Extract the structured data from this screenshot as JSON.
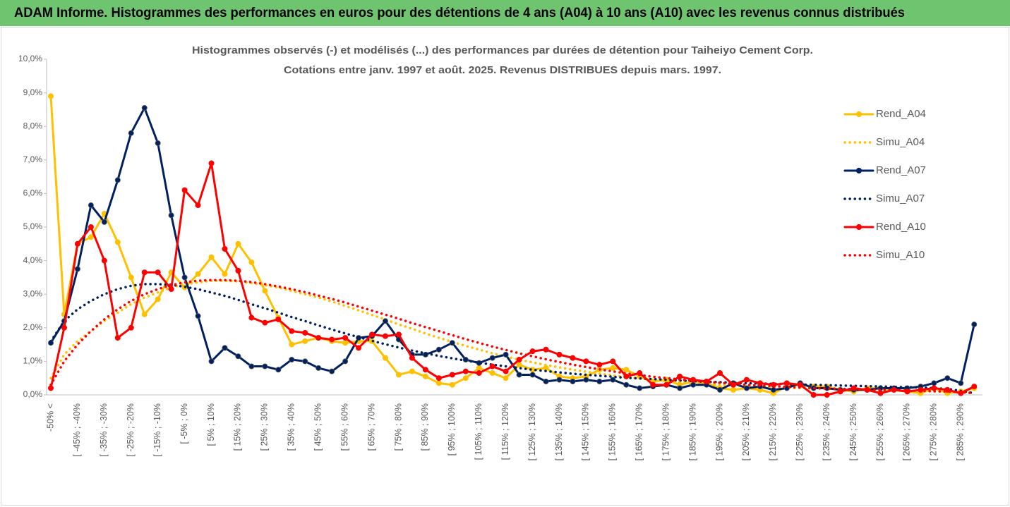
{
  "header": {
    "title": "ADAM Informe. Histogrammes des performances en euros pour des détentions de 4 ans (A04) à 10 ans (A10) avec les revenus connus distribués"
  },
  "chart_data": {
    "type": "line",
    "title": "Histogrammes observés (-) et modélisés (...) des performances par durées de détention pour Taiheiyo Cement Corp.",
    "subtitle": "Cotations entre janv. 1997 et août. 2025. Revenus DISTRIBUES depuis mars. 1997.",
    "categories": [
      "-50% <",
      null,
      "[ -45% ; -40%",
      null,
      "[ -35% ; -30%",
      null,
      "[ -25% ; -20%",
      null,
      "[ -15% ; -10%",
      null,
      "[ -5% ; 0%",
      null,
      "[ 5% ; 10%",
      null,
      "[ 15% ; 20%",
      null,
      "[ 25% ; 30%",
      null,
      "[ 35% ; 40%",
      null,
      "[ 45% ; 50%",
      null,
      "[ 55% ; 60%",
      null,
      "[ 65% ; 70%",
      null,
      "[ 75% ; 80%",
      null,
      "[ 85% ; 90%",
      null,
      "[ 95% ; 100%",
      null,
      "[ 105% ; 110%",
      null,
      "[ 115% ; 120%",
      null,
      "[ 125% ; 130%",
      null,
      "[ 135% ; 140%",
      null,
      "[ 145% ; 150%",
      null,
      "[ 155% ; 160%",
      null,
      "[ 165% ; 170%",
      null,
      "[ 175% ; 180%",
      null,
      "[ 185% ; 190%",
      null,
      "[ 195% ; 200%",
      null,
      "[ 205% ; 210%",
      null,
      "[ 215% ; 220%",
      null,
      "[ 225% ; 230%",
      null,
      "[ 235% ; 240%",
      null,
      "[ 245% ; 250%",
      null,
      "[ 255% ; 260%",
      null,
      "[ 265% ; 270%",
      null,
      "[ 275% ; 280%",
      null,
      "[ 285% ; 290%",
      null
    ],
    "series": [
      {
        "name": "Rend_A04",
        "color": "#ffc000",
        "style": "solid",
        "markers": true,
        "values": [
          8.9,
          2.4,
          4.5,
          4.7,
          5.4,
          4.55,
          3.5,
          2.4,
          2.85,
          3.65,
          3.2,
          3.6,
          4.1,
          3.6,
          4.5,
          3.95,
          3.1,
          2.3,
          1.5,
          1.6,
          1.7,
          1.6,
          1.55,
          1.6,
          1.6,
          1.1,
          0.6,
          0.7,
          0.55,
          0.35,
          0.3,
          0.5,
          0.8,
          0.65,
          0.5,
          0.9,
          0.75,
          0.8,
          0.55,
          0.5,
          0.55,
          0.75,
          0.8,
          0.75,
          0.55,
          0.4,
          0.45,
          0.3,
          0.4,
          0.35,
          0.2,
          0.15,
          0.2,
          0.15,
          0.05,
          0.25,
          0.3,
          0.25,
          0.25,
          0.15,
          0.1,
          0.2,
          0.2,
          0.15,
          0.1,
          0.05,
          0.2,
          0.05,
          0.1,
          0.2
        ]
      },
      {
        "name": "Simu_A04",
        "color": "#ffc000",
        "style": "dotted",
        "markers": false,
        "values": [
          0.5,
          1.2,
          1.6,
          1.9,
          2.2,
          2.45,
          2.7,
          2.9,
          3.05,
          3.2,
          3.3,
          3.35,
          3.4,
          3.4,
          3.38,
          3.33,
          3.27,
          3.2,
          3.1,
          3.0,
          2.9,
          2.78,
          2.65,
          2.52,
          2.38,
          2.25,
          2.1,
          1.97,
          1.83,
          1.7,
          1.58,
          1.46,
          1.35,
          1.24,
          1.14,
          1.05,
          0.97,
          0.89,
          0.82,
          0.75,
          0.69,
          0.63,
          0.58,
          0.53,
          0.49,
          0.45,
          0.41,
          0.38,
          0.35,
          0.32,
          0.3,
          0.28,
          0.26,
          0.24,
          0.22,
          0.21,
          0.2,
          0.19,
          0.18,
          0.17,
          0.16,
          0.15,
          0.14,
          0.13,
          0.12,
          0.11,
          0.1,
          0.09,
          0.08,
          0.07
        ]
      },
      {
        "name": "Rend_A07",
        "color": "#002060",
        "style": "solid",
        "markers": true,
        "values": [
          1.55,
          2.2,
          3.75,
          5.65,
          5.15,
          6.4,
          7.8,
          8.55,
          7.5,
          5.35,
          3.5,
          2.35,
          1.0,
          1.4,
          1.15,
          0.85,
          0.85,
          0.75,
          1.05,
          1.0,
          0.8,
          0.7,
          1.0,
          1.7,
          1.75,
          2.2,
          1.65,
          1.2,
          1.2,
          1.35,
          1.55,
          1.05,
          0.95,
          1.1,
          1.2,
          0.6,
          0.6,
          0.4,
          0.45,
          0.4,
          0.45,
          0.4,
          0.45,
          0.3,
          0.2,
          0.25,
          0.3,
          0.2,
          0.3,
          0.3,
          0.15,
          0.35,
          0.2,
          0.25,
          0.15,
          0.2,
          0.35,
          0.2,
          0.2,
          0.15,
          0.15,
          0.15,
          0.2,
          0.2,
          0.2,
          0.25,
          0.35,
          0.5,
          0.35,
          2.1
        ]
      },
      {
        "name": "Simu_A07",
        "color": "#002060",
        "style": "dotted",
        "markers": false,
        "values": [
          1.6,
          2.2,
          2.55,
          2.8,
          3.0,
          3.15,
          3.25,
          3.3,
          3.3,
          3.28,
          3.22,
          3.15,
          3.05,
          2.95,
          2.83,
          2.7,
          2.58,
          2.45,
          2.32,
          2.2,
          2.07,
          1.95,
          1.83,
          1.72,
          1.61,
          1.51,
          1.41,
          1.32,
          1.24,
          1.16,
          1.09,
          1.02,
          0.96,
          0.9,
          0.85,
          0.8,
          0.75,
          0.71,
          0.67,
          0.63,
          0.6,
          0.57,
          0.54,
          0.51,
          0.49,
          0.47,
          0.45,
          0.43,
          0.41,
          0.39,
          0.38,
          0.36,
          0.35,
          0.34,
          0.33,
          0.32,
          0.31,
          0.3,
          0.29,
          0.28,
          0.27,
          0.26,
          0.25,
          0.24,
          0.23,
          0.22,
          0.2,
          0.18,
          0.12,
          0.05
        ]
      },
      {
        "name": "Rend_A10",
        "color": "#ff0000",
        "style": "solid",
        "markers": true,
        "values": [
          0.2,
          2.0,
          4.5,
          5.0,
          4.0,
          1.7,
          2.0,
          3.65,
          3.65,
          3.15,
          6.1,
          5.65,
          6.9,
          4.35,
          3.7,
          2.3,
          2.15,
          2.25,
          1.9,
          1.85,
          1.7,
          1.65,
          1.7,
          1.4,
          1.8,
          1.75,
          1.8,
          1.1,
          0.75,
          0.5,
          0.6,
          0.7,
          0.65,
          0.85,
          0.7,
          1.05,
          1.3,
          1.35,
          1.2,
          1.1,
          1.0,
          0.9,
          1.0,
          0.55,
          0.65,
          0.3,
          0.3,
          0.55,
          0.45,
          0.4,
          0.65,
          0.3,
          0.45,
          0.35,
          0.3,
          0.35,
          0.3,
          0.0,
          0.0,
          0.1,
          0.2,
          0.15,
          0.05,
          0.15,
          0.1,
          0.15,
          0.2,
          0.15,
          0.05,
          0.25
        ]
      },
      {
        "name": "Simu_A10",
        "color": "#ff0000",
        "style": "dotted",
        "markers": false,
        "values": [
          0.3,
          1.0,
          1.5,
          1.9,
          2.25,
          2.55,
          2.8,
          3.0,
          3.15,
          3.27,
          3.35,
          3.4,
          3.42,
          3.42,
          3.4,
          3.36,
          3.3,
          3.23,
          3.15,
          3.06,
          2.96,
          2.86,
          2.75,
          2.63,
          2.51,
          2.39,
          2.27,
          2.14,
          2.02,
          1.9,
          1.78,
          1.66,
          1.55,
          1.44,
          1.34,
          1.24,
          1.15,
          1.06,
          0.98,
          0.9,
          0.83,
          0.76,
          0.7,
          0.64,
          0.59,
          0.54,
          0.5,
          0.46,
          0.42,
          0.39,
          0.36,
          0.33,
          0.3,
          0.28,
          0.26,
          0.24,
          0.22,
          0.2,
          0.19,
          0.18,
          0.17,
          0.16,
          0.15,
          0.14,
          0.13,
          0.12,
          0.11,
          0.1,
          0.08,
          0.05
        ]
      }
    ],
    "ylim": [
      0,
      10
    ],
    "yticks": [
      {
        "value": 0,
        "label": "0,0%"
      },
      {
        "value": 1,
        "label": "1,0%"
      },
      {
        "value": 2,
        "label": "2,0%"
      },
      {
        "value": 3,
        "label": "3,0%"
      },
      {
        "value": 4,
        "label": "4,0%"
      },
      {
        "value": 5,
        "label": "5,0%"
      },
      {
        "value": 6,
        "label": "6,0%"
      },
      {
        "value": 7,
        "label": "7,0%"
      },
      {
        "value": 8,
        "label": "8,0%"
      },
      {
        "value": 9,
        "label": "9,0%"
      },
      {
        "value": 10,
        "label": "10,0%"
      }
    ],
    "grid": false,
    "legend": "right"
  }
}
